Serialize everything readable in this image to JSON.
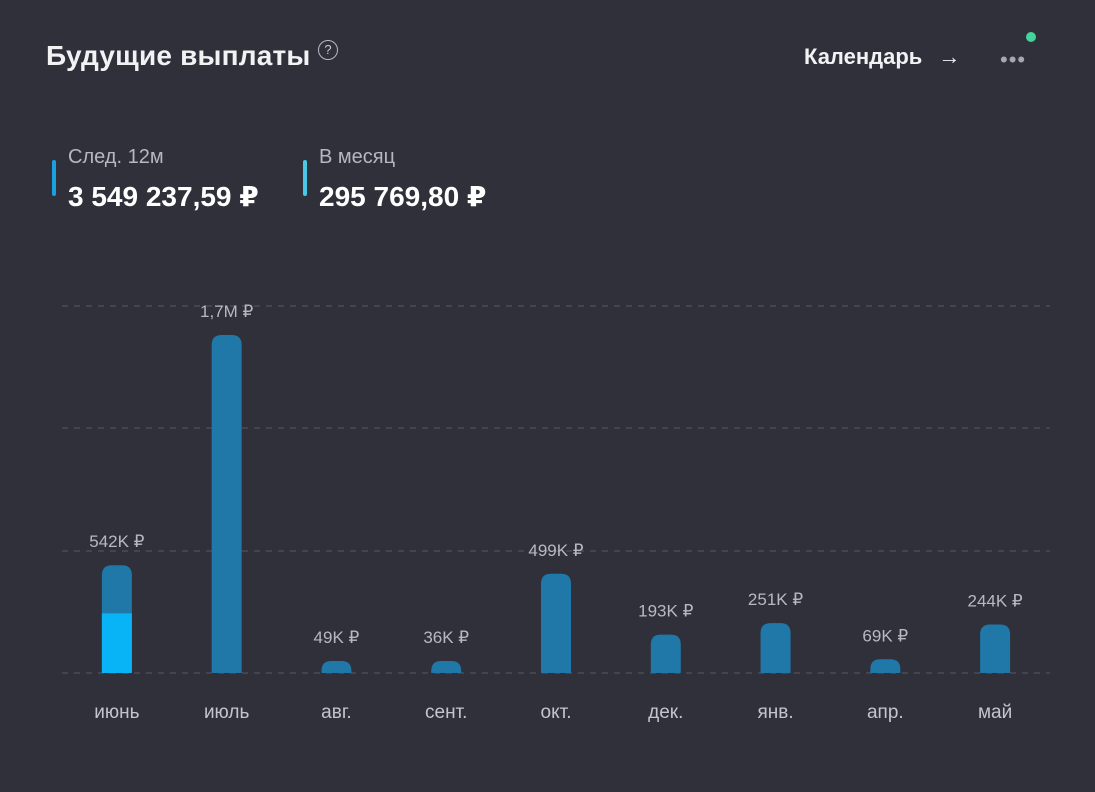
{
  "header": {
    "title": "Будущие выплаты",
    "help": "?",
    "calendar_label": "Календарь",
    "arrow": "→",
    "more": "•••"
  },
  "stats": {
    "next12_label": "След. 12м",
    "next12_value": "3 549 237,59 ₽",
    "month_label": "В месяц",
    "month_value": "295 769,80 ₽"
  },
  "colors": {
    "bar": "#1f78a8",
    "bar_highlight": "#08b4f5",
    "accent_next": "#1a9fe0",
    "accent_month": "#48c8e6",
    "status_dot": "#44d39a"
  },
  "chart_data": {
    "type": "bar",
    "title": "",
    "xlabel": "",
    "ylabel": "",
    "categories": [
      "июнь",
      "июль",
      "авг.",
      "сент.",
      "окт.",
      "дек.",
      "янв.",
      "апр.",
      "май"
    ],
    "values": [
      542000,
      1700000,
      49000,
      36000,
      499000,
      193000,
      251000,
      69000,
      244000
    ],
    "data_labels": [
      "542K ₽",
      "1,7M ₽",
      "49K ₽",
      "36K ₽",
      "499K ₽",
      "193K ₽",
      "251K ₽",
      "69K ₽",
      "244K ₽"
    ],
    "highlight": {
      "index": 0,
      "value": 300000
    },
    "ylim": [
      0,
      1700000
    ],
    "grid": true,
    "legend": "none"
  }
}
